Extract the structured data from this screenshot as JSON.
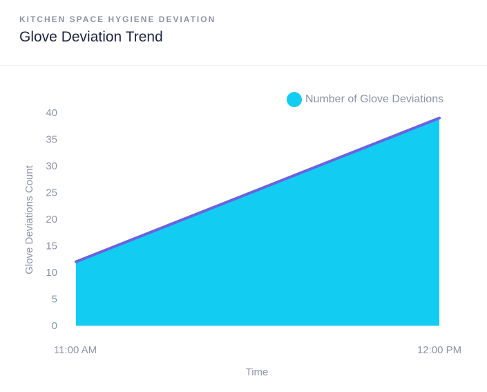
{
  "header": {
    "eyebrow": "KITCHEN SPACE HYGIENE DEVIATION",
    "title": "Glove Deviation Trend"
  },
  "colors": {
    "area_fill": "#13ccf2",
    "line_stroke": "#6a63de",
    "legend_marker": "#13ccf2",
    "text_muted": "#8a94a6"
  },
  "chart_data": {
    "type": "area",
    "x": [
      "11:00 AM",
      "12:00 PM"
    ],
    "series": [
      {
        "name": "Number of Glove Deviations",
        "values": [
          12,
          39
        ]
      }
    ],
    "xlabel": "Time",
    "ylabel": "Glove Deviations Count",
    "ylim": [
      0,
      40
    ],
    "yticks": [
      0,
      5,
      10,
      15,
      20,
      25,
      30,
      35,
      40
    ],
    "grid": false,
    "legend": "top-right"
  }
}
